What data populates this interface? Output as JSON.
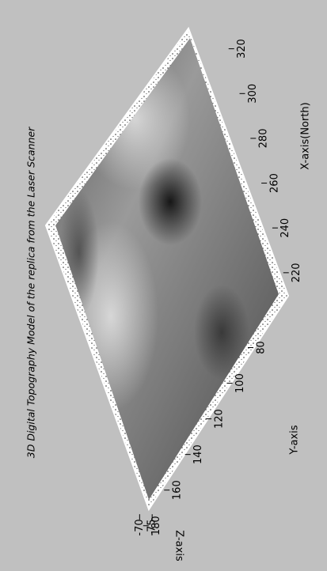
{
  "chart_data": {
    "type": "surface",
    "title": "3D Digital Topography Model of the replica from the Laser Scanner",
    "xlabel": "X-axis(North)",
    "ylabel": "Y-axis",
    "zlabel": "Z-axis",
    "xlim": [
      215,
      328
    ],
    "xticks": [
      220,
      240,
      260,
      280,
      300,
      320
    ],
    "ylim": [
      70,
      185
    ],
    "yticks": [
      80,
      100,
      120,
      140,
      160,
      180
    ],
    "zlim": [
      -80,
      -68
    ],
    "zticks": [
      -70,
      -75
    ],
    "colormap": "gray"
  }
}
